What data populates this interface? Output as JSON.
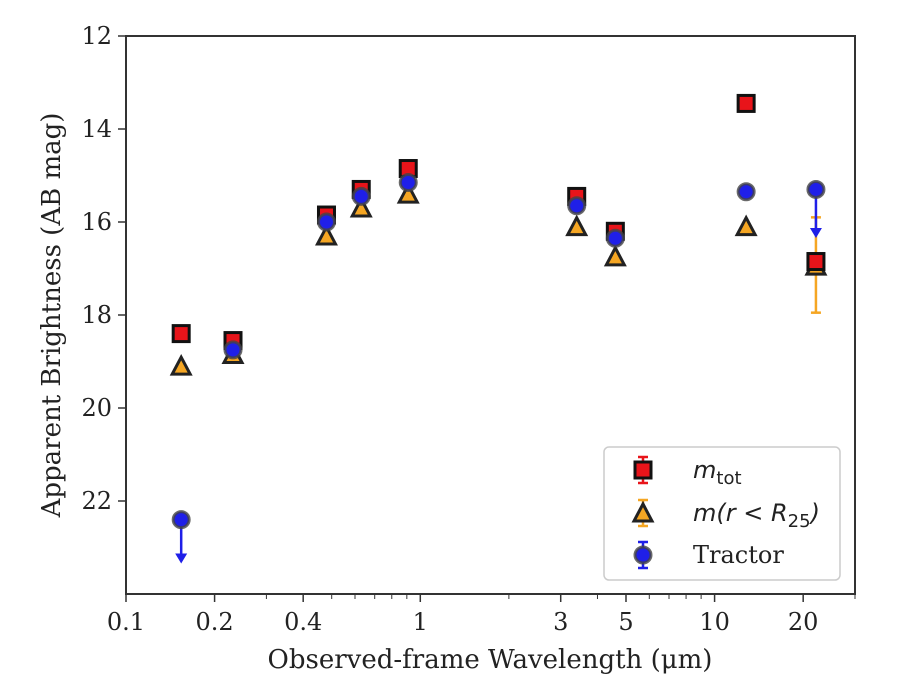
{
  "chart_data": {
    "type": "scatter",
    "xlabel": "Observed-frame Wavelength (μm)",
    "ylabel": "Apparent Brightness (AB mag)",
    "x_scale": "log",
    "xlim": [
      0.1,
      30
    ],
    "ylim": [
      24,
      12
    ],
    "y_inverted": true,
    "x_ticks": [
      0.1,
      0.2,
      0.4,
      1,
      3,
      5,
      10,
      20
    ],
    "x_tick_labels": [
      "0.1",
      "0.2",
      "0.4",
      "1",
      "3",
      "5",
      "10",
      "20"
    ],
    "y_ticks": [
      12,
      14,
      16,
      18,
      20,
      22
    ],
    "y_tick_labels": [
      "12",
      "14",
      "16",
      "18",
      "20",
      "22"
    ],
    "grid": false,
    "legend_position": "lower-right",
    "series": [
      {
        "name": "m_tot",
        "legend_label_main": "m",
        "legend_label_sub": "tot",
        "marker": "square",
        "color": "#e8141a",
        "points": [
          {
            "x": 0.154,
            "y": 18.4
          },
          {
            "x": 0.231,
            "y": 18.55
          },
          {
            "x": 0.48,
            "y": 15.85
          },
          {
            "x": 0.63,
            "y": 15.3
          },
          {
            "x": 0.91,
            "y": 14.85
          },
          {
            "x": 3.4,
            "y": 15.45
          },
          {
            "x": 4.6,
            "y": 16.2
          },
          {
            "x": 12.8,
            "y": 13.45
          },
          {
            "x": 22.1,
            "y": 16.85
          }
        ]
      },
      {
        "name": "m(r < R25)",
        "legend_label_main": "m(r < R",
        "legend_label_sub": "25",
        "legend_label_end": ")",
        "marker": "triangle",
        "color": "#f5a623",
        "points": [
          {
            "x": 0.154,
            "y": 19.1
          },
          {
            "x": 0.231,
            "y": 18.85
          },
          {
            "x": 0.48,
            "y": 16.3
          },
          {
            "x": 0.63,
            "y": 15.7
          },
          {
            "x": 0.91,
            "y": 15.4
          },
          {
            "x": 3.4,
            "y": 16.1
          },
          {
            "x": 4.6,
            "y": 16.75
          },
          {
            "x": 12.8,
            "y": 16.1
          },
          {
            "x": 22.1,
            "y": 16.95,
            "err": [
              15.9,
              17.95
            ]
          }
        ]
      },
      {
        "name": "Tractor",
        "marker": "circle",
        "color": "#1f1fe8",
        "points": [
          {
            "x": 0.154,
            "y": 22.4,
            "upper_limit": true,
            "arrow_to": 23.3
          },
          {
            "x": 0.231,
            "y": 18.75
          },
          {
            "x": 0.48,
            "y": 16.0
          },
          {
            "x": 0.63,
            "y": 15.45
          },
          {
            "x": 0.91,
            "y": 15.15
          },
          {
            "x": 3.4,
            "y": 15.65
          },
          {
            "x": 4.6,
            "y": 16.35
          },
          {
            "x": 12.8,
            "y": 15.35
          },
          {
            "x": 22.1,
            "y": 15.3,
            "upper_limit": true,
            "arrow_to": 16.3
          }
        ]
      }
    ]
  }
}
